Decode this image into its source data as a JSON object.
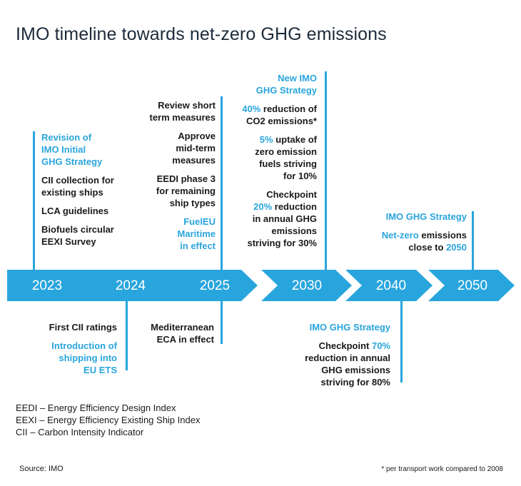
{
  "title": "IMO timeline towards net-zero GHG emissions",
  "years": [
    "2023",
    "2024",
    "2025",
    "2030",
    "2040",
    "2050"
  ],
  "y2023": {
    "heading": [
      "Revision of",
      "IMO Initial",
      "GHG Strategy"
    ],
    "cii": [
      "CII collection for",
      "existing ships"
    ],
    "lca": "LCA guidelines",
    "biofuels": [
      "Biofuels circular",
      "EEXI Survey"
    ]
  },
  "y2025": {
    "review": [
      "Review short",
      "term measures"
    ],
    "approve": [
      "Approve",
      "mid-term",
      "measures"
    ],
    "eedi": [
      "EEDI phase 3",
      "for remaining",
      "ship types"
    ],
    "fueleu": [
      "FuelEU",
      "Maritime",
      "in effect"
    ]
  },
  "y2030": {
    "heading": [
      "New IMO",
      "GHG Strategy"
    ],
    "reduction": {
      "pct": "40%",
      "line1_rest": " reduction of",
      "line2": "CO2 emissions*"
    },
    "uptake": {
      "pct": "5%",
      "line1_rest": " uptake of",
      "line2": "zero emission",
      "line3": "fuels striving",
      "line4": "for 10%"
    },
    "checkpoint": {
      "line1": "Checkpoint",
      "pct": "20%",
      "line2_rest": " reduction",
      "line3": "in annual GHG",
      "line4": "emissions",
      "line5": "striving for 30%"
    }
  },
  "y2050": {
    "heading": "IMO GHG Strategy",
    "netzero": {
      "blue": "Net-zero",
      "rest": " emissions",
      "line2_pre": "close to ",
      "year": "2050"
    }
  },
  "y2024": {
    "first": "First CII ratings",
    "intro": [
      "Introduction of",
      "shipping into",
      "EU ETS"
    ]
  },
  "y2025b": {
    "med": [
      "Mediterranean",
      "ECA in effect"
    ]
  },
  "y2040": {
    "heading": "IMO GHG Strategy",
    "checkpoint": {
      "pre": "Checkpoint ",
      "pct": "70%",
      "line2": "reduction in annual",
      "line3": "GHG emissions",
      "line4": "striving for 80%"
    }
  },
  "legend": [
    "EEDI –  Energy Efficiency Design Index",
    "EEXI – Energy Efficiency Existing Ship Index",
    "CII – Carbon Intensity Indicator"
  ],
  "source": "Source: IMO",
  "footnote": "* per transport work compared to 2008",
  "colors": {
    "accent": "#29a5dd",
    "text": "#1a1a1a"
  }
}
